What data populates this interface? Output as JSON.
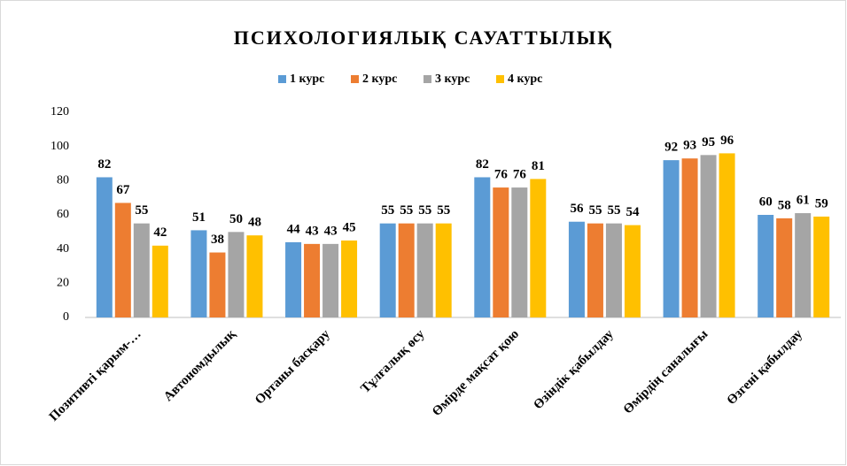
{
  "chart_data": {
    "type": "bar",
    "title": "ПСИХОЛОГИЯЛЫҚ САУАТТЫЛЫҚ",
    "categories": [
      "Позитивті қарым-…",
      "Автономдылық",
      "Ортаны басқару",
      "Тұлғалық өсу",
      "Өмірде мақсат қою",
      "Өзіндік қабылдау",
      "Өмірдің саналығы",
      "Өзгені қабылдау"
    ],
    "series": [
      {
        "name": "1 курс",
        "color": "#5b9bd5",
        "values": [
          82,
          51,
          44,
          55,
          82,
          56,
          92,
          60
        ]
      },
      {
        "name": "2 курс",
        "color": "#ed7d31",
        "values": [
          67,
          38,
          43,
          55,
          76,
          55,
          93,
          58
        ]
      },
      {
        "name": "3 курс",
        "color": "#a5a5a5",
        "values": [
          55,
          50,
          43,
          55,
          76,
          55,
          95,
          61
        ]
      },
      {
        "name": "4 курс",
        "color": "#ffc000",
        "values": [
          42,
          48,
          45,
          55,
          81,
          54,
          96,
          59
        ]
      }
    ],
    "ylim": [
      0,
      120
    ],
    "yticks": [
      0,
      20,
      40,
      60,
      80,
      100,
      120
    ],
    "grid": false,
    "legend": "top"
  }
}
